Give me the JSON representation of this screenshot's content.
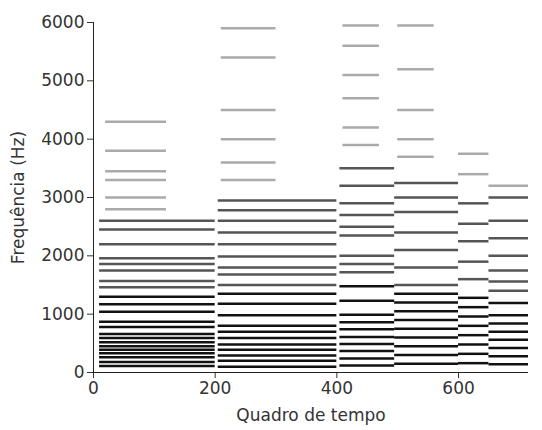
{
  "chart_data": {
    "type": "spectrogram",
    "x_label": "Quadro de tempo",
    "y_label": "Frequência (Hz)",
    "xlim": [
      0,
      715
    ],
    "ylim": [
      0,
      6000
    ],
    "xticks": [
      0,
      200,
      400,
      600
    ],
    "yticks": [
      0,
      1000,
      2000,
      3000,
      4000,
      5000,
      6000
    ],
    "grid": false,
    "segments": [
      {
        "x": [
          10,
          200
        ],
        "color": "#111111",
        "freqs": [
          110,
          180,
          260,
          330,
          390,
          450,
          520,
          590,
          660,
          780,
          870,
          1040,
          1170,
          1300
        ]
      },
      {
        "x": [
          10,
          200
        ],
        "color": "#555555",
        "freqs": [
          1460,
          1570,
          1750,
          1860,
          1960,
          2200,
          2450,
          2600
        ]
      },
      {
        "x": [
          20,
          120
        ],
        "color": "#aaaaaa",
        "freqs": [
          2800,
          3000,
          3300,
          3450,
          3800,
          4300
        ]
      },
      {
        "x": [
          205,
          400
        ],
        "color": "#111111",
        "freqs": [
          100,
          200,
          290,
          390,
          480,
          590,
          700,
          800,
          980,
          1180,
          1350
        ]
      },
      {
        "x": [
          205,
          400
        ],
        "color": "#555555",
        "freqs": [
          1500,
          1680,
          1800,
          1990,
          2200,
          2400,
          2600,
          2780,
          2950
        ]
      },
      {
        "x": [
          210,
          300
        ],
        "color": "#aaaaaa",
        "freqs": [
          3300,
          3600,
          4000,
          4500,
          5400,
          5900
        ]
      },
      {
        "x": [
          405,
          495
        ],
        "color": "#111111",
        "freqs": [
          120,
          240,
          370,
          490,
          610,
          740,
          860,
          990,
          1230,
          1480
        ]
      },
      {
        "x": [
          405,
          495
        ],
        "color": "#555555",
        "freqs": [
          1720,
          1860,
          2000,
          2350,
          2500,
          2700,
          2900,
          3200,
          3500
        ]
      },
      {
        "x": [
          410,
          470
        ],
        "color": "#aaaaaa",
        "freqs": [
          3900,
          4200,
          4700,
          5100,
          5600,
          5950
        ]
      },
      {
        "x": [
          495,
          600
        ],
        "color": "#111111",
        "freqs": [
          150,
          300,
          450,
          600,
          750,
          900,
          1050,
          1200,
          1350
        ]
      },
      {
        "x": [
          495,
          600
        ],
        "color": "#555555",
        "freqs": [
          1500,
          1800,
          2100,
          2400,
          2750,
          3000,
          3250
        ]
      },
      {
        "x": [
          500,
          560
        ],
        "color": "#aaaaaa",
        "freqs": [
          3700,
          4000,
          4500,
          5200,
          5950
        ]
      },
      {
        "x": [
          600,
          650
        ],
        "color": "#111111",
        "freqs": [
          160,
          320,
          480,
          640,
          800,
          960,
          1120,
          1280
        ]
      },
      {
        "x": [
          600,
          650
        ],
        "color": "#555555",
        "freqs": [
          1600,
          1900,
          2250,
          2550,
          2900
        ]
      },
      {
        "x": [
          600,
          650
        ],
        "color": "#aaaaaa",
        "freqs": [
          3400,
          3750
        ]
      },
      {
        "x": [
          650,
          715
        ],
        "color": "#111111",
        "freqs": [
          140,
          280,
          420,
          560,
          700,
          840,
          980,
          1190
        ]
      },
      {
        "x": [
          650,
          715
        ],
        "color": "#555555",
        "freqs": [
          1400,
          1560,
          1750,
          2000,
          2300,
          2600,
          3000
        ]
      },
      {
        "x": [
          650,
          715
        ],
        "color": "#aaaaaa",
        "freqs": [
          3200
        ]
      }
    ]
  }
}
